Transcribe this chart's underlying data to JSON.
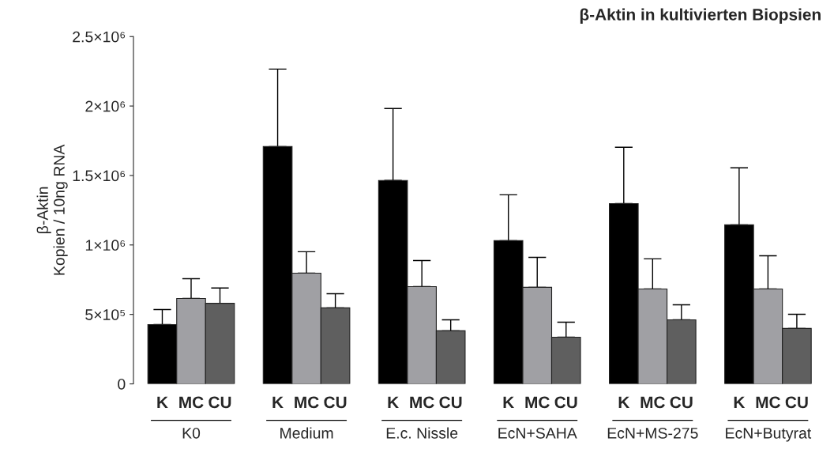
{
  "chart_data": {
    "type": "bar",
    "title": "β-Aktin in kultivierten Biopsien",
    "ylabel": "β-Aktin\nKopien / 10ng RNA",
    "categories": [
      "K0",
      "Medium",
      "E.c. Nissle",
      "EcN+SAHA",
      "EcN+MS-275",
      "EcN+Butyrat"
    ],
    "series": [
      {
        "name": "K",
        "color": "#000000",
        "values": [
          427000,
          1708000,
          1464000,
          1031000,
          1298000,
          1145000
        ],
        "errors": [
          [
            427000,
            535000
          ],
          [
            1708000,
            2266000
          ],
          [
            1464000,
            1982000
          ],
          [
            1031000,
            1361000
          ],
          [
            1298000,
            1703000
          ],
          [
            1145000,
            1555000
          ]
        ]
      },
      {
        "name": "MC",
        "color": "#a0a0a4",
        "values": [
          615000,
          797000,
          700000,
          695000,
          683000,
          683000
        ],
        "errors": [
          [
            615000,
            757000
          ],
          [
            797000,
            951000
          ],
          [
            700000,
            888000
          ],
          [
            695000,
            911000
          ],
          [
            683000,
            900000
          ],
          [
            683000,
            922000
          ]
        ]
      },
      {
        "name": "CU",
        "color": "#5f5f5f",
        "values": [
          580000,
          547000,
          382000,
          336000,
          461000,
          399000
        ],
        "errors": [
          [
            580000,
            690000
          ],
          [
            547000,
            649000
          ],
          [
            382000,
            461000
          ],
          [
            336000,
            444000
          ],
          [
            461000,
            569000
          ],
          [
            399000,
            501000
          ]
        ]
      }
    ],
    "ylim": [
      0,
      2500000
    ],
    "yticks": [
      0,
      {
        "value": 500000,
        "label": "5×10⁵"
      },
      {
        "value": 1000000,
        "label": "1×10⁶"
      },
      {
        "value": 1500000,
        "label": "1.5×10⁶"
      },
      {
        "value": 2000000,
        "label": "2×10⁶"
      },
      {
        "value": 2500000,
        "label": "2.5×10⁶"
      }
    ],
    "grid": false,
    "legend": false
  }
}
